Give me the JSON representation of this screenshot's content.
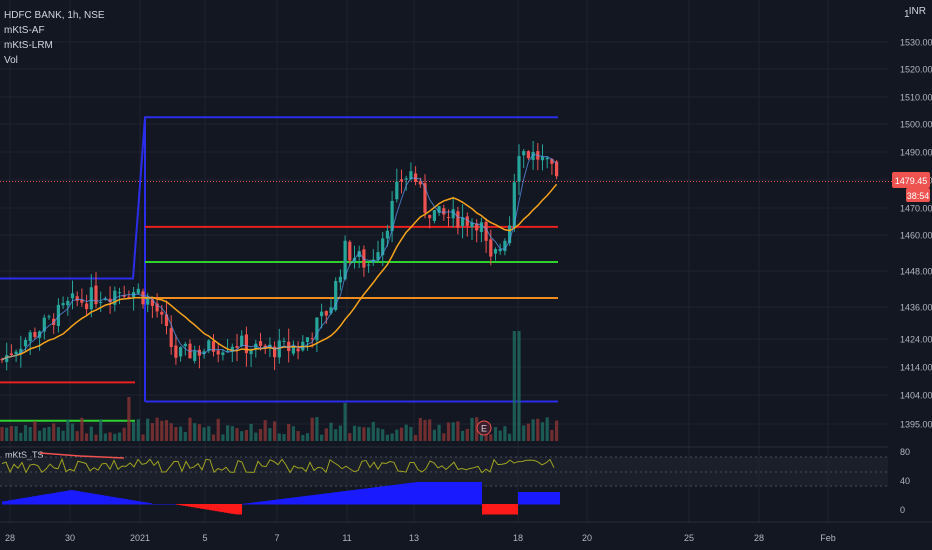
{
  "legend": {
    "symbol": "HDFC BANK, 1h, NSE",
    "indicators": [
      "mKtS-AF",
      "mKtS-LRM",
      "Vol"
    ]
  },
  "currency": "INR",
  "scale_label": "1",
  "price_badge": {
    "price": "1479.45",
    "countdown": "38:54"
  },
  "osc_label": "mKtS_TS",
  "chart_data": {
    "type": "candlestick",
    "symbol": "HDFC BANK",
    "timeframe": "1h",
    "exchange": "NSE",
    "x_tick_labels": [
      "28",
      "30",
      "2021",
      "5",
      "7",
      "11",
      "13",
      "18",
      "20",
      "25",
      "28",
      "Feb"
    ],
    "price_ticks": [
      1395.0,
      1404.0,
      1414.0,
      1424.0,
      1436.0,
      1448.0,
      1460.0,
      1470.0,
      1480.0,
      1490.0,
      1500.0,
      1510.0,
      1520.0,
      1530.0
    ],
    "price_tick_labels": [
      "1395.00",
      "1404.00",
      "1414.00",
      "1424.00",
      "1436.00",
      "1448.00",
      "1460.00",
      "1470.00",
      "1480.00",
      "1490.00",
      "1500.00",
      "1510.00",
      "1520.00",
      "1530.00"
    ],
    "last_price": 1479.45,
    "levels": [
      {
        "name": "blue-upper-prev",
        "price": 1445.5
      },
      {
        "name": "blue-upper",
        "price": 1502.5
      },
      {
        "name": "red-resistance",
        "price": 1463.0
      },
      {
        "name": "green-support",
        "price": 1451.0
      },
      {
        "name": "orange-level",
        "price": 1439.0
      },
      {
        "name": "red-level-prev",
        "price": 1408.5
      },
      {
        "name": "green-level-prev",
        "price": 1396.0
      },
      {
        "name": "blue-lower",
        "price": 1402.0
      }
    ],
    "oscillator_ticks": [
      80,
      40,
      0
    ],
    "colors": {
      "bull": "#26a69a",
      "bear": "#ef5350",
      "ma": "#f7a21b",
      "fast_ma": "#5b9cf6",
      "channel": "#2a2ee8",
      "resistance": "#e8211f",
      "support": "#2ed12e",
      "level": "#f08c1d",
      "osc_line": "#9fa31f",
      "hist_pos": "#1a1aff",
      "hist_neg": "#ff1a1a"
    }
  }
}
